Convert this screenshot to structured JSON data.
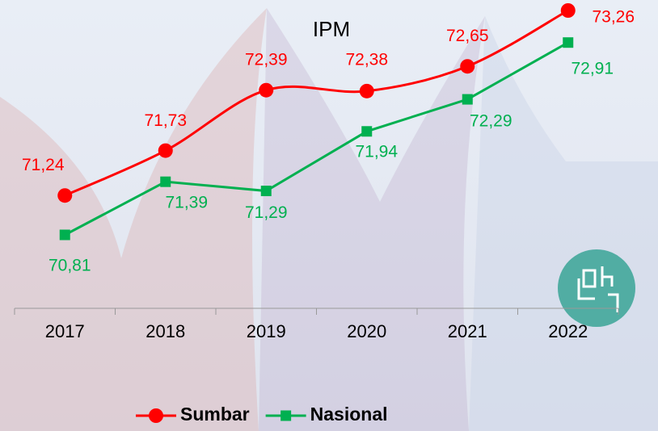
{
  "chart_data": {
    "type": "line",
    "title": "IPM",
    "categories": [
      "2017",
      "2018",
      "2019",
      "2020",
      "2021",
      "2022"
    ],
    "series": [
      {
        "name": "Sumbar",
        "color": "#ff0000",
        "marker": "circle",
        "smooth": true,
        "values": [
          71.24,
          71.73,
          72.39,
          72.38,
          72.65,
          73.26
        ],
        "value_labels": [
          "71,24",
          "71,73",
          "72,39",
          "72,38",
          "72,65",
          "73,26"
        ]
      },
      {
        "name": "Nasional",
        "color": "#00b050",
        "marker": "square",
        "smooth": false,
        "values": [
          70.81,
          71.39,
          71.29,
          71.94,
          72.29,
          72.91
        ],
        "value_labels": [
          "70,81",
          "71,39",
          "71,29",
          "71,94",
          "72,29",
          "72,91"
        ]
      }
    ],
    "legend": "bottom"
  }
}
